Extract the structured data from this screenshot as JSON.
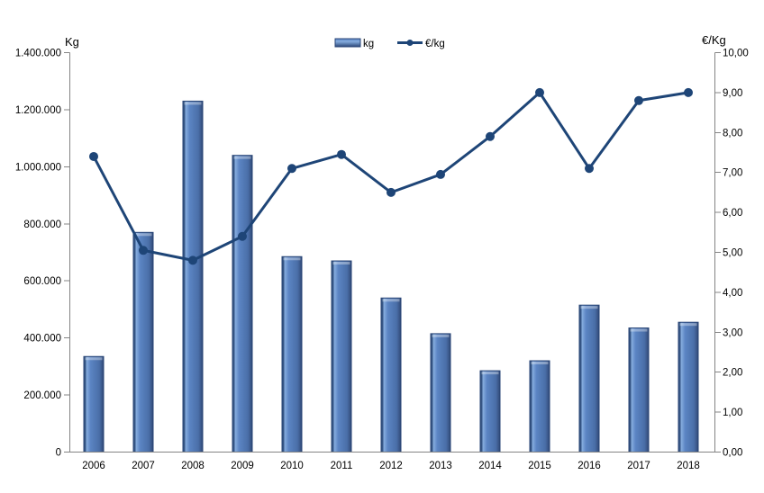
{
  "chart_data": {
    "type": "combo-bar-line",
    "title": "",
    "categories": [
      "2006",
      "2007",
      "2008",
      "2009",
      "2010",
      "2011",
      "2012",
      "2013",
      "2014",
      "2015",
      "2016",
      "2017",
      "2018"
    ],
    "series": [
      {
        "name": "kg",
        "type": "bar",
        "axis": "left",
        "values": [
          335000,
          770000,
          1230000,
          1040000,
          685000,
          670000,
          540000,
          415000,
          285000,
          320000,
          515000,
          435000,
          455000
        ]
      },
      {
        "name": "€/kg",
        "type": "line",
        "axis": "right",
        "values": [
          7.4,
          5.05,
          4.8,
          5.4,
          7.1,
          7.45,
          6.5,
          6.95,
          7.9,
          9.0,
          7.1,
          8.8,
          9.0
        ]
      }
    ],
    "left_axis": {
      "title": "Kg",
      "min": 0,
      "max": 1400000,
      "step": 200000,
      "tick_labels": [
        "1.400.000",
        "1.200.000",
        "1.000.000",
        "800.000",
        "600.000",
        "400.000",
        "200.000",
        "0"
      ]
    },
    "right_axis": {
      "title": "€/Kg",
      "min": 0,
      "max": 10,
      "step": 1,
      "tick_labels": [
        "10,00",
        "9,00",
        "8,00",
        "7,00",
        "6,00",
        "5,00",
        "4,00",
        "3,00",
        "2,00",
        "1,00",
        "0,00"
      ]
    },
    "legend": {
      "position": "top",
      "items": [
        {
          "label": "kg",
          "swatch": "bar"
        },
        {
          "label": "€/kg",
          "swatch": "line-marker"
        }
      ]
    },
    "grid": false,
    "legend_labels_note": "lowercase in legend, capitalized on axis titles",
    "colors": {
      "bar_fill": "#5B84C3",
      "bar_fill_dark": "#4A6FA8",
      "bar_highlight": "#85ACDE",
      "bar_edge": "#2A4677",
      "line": "#1E4577",
      "axis": "#848484",
      "text": "#000000",
      "background": "#FFFFFF"
    }
  }
}
